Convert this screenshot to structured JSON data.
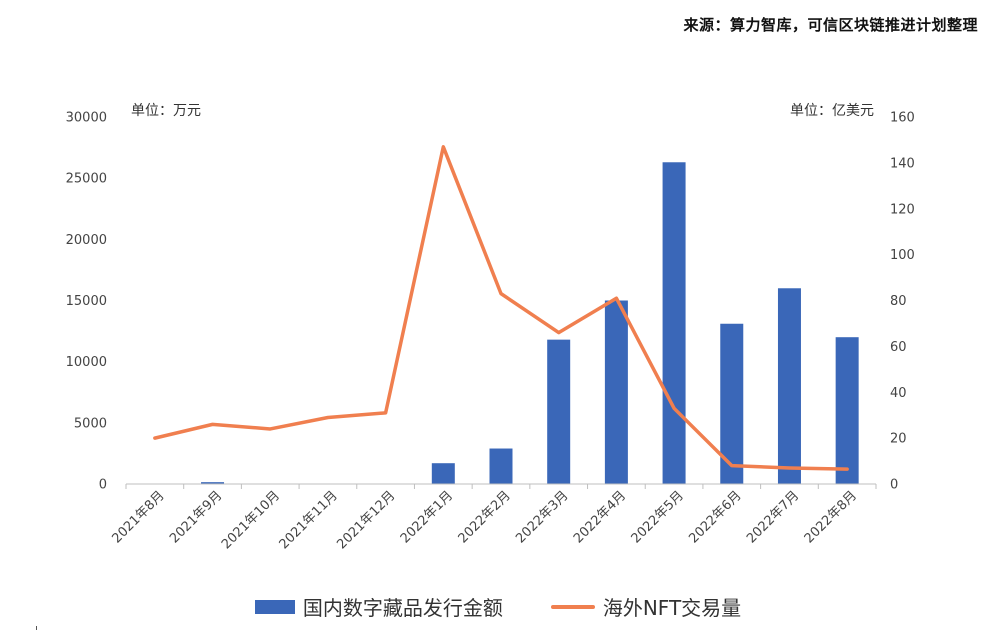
{
  "source_text": "来源：算力智库，可信区块链推进计划整理",
  "colors": {
    "bar": "#3A67B8",
    "line": "#F07F4F",
    "axis": "#BFBFBF"
  },
  "chart_data": {
    "type": "bar-line",
    "title": "",
    "categories": [
      "2021年8月",
      "2021年9月",
      "2021年10月",
      "2021年11月",
      "2021年12月",
      "2022年1月",
      "2022年2月",
      "2022年3月",
      "2022年4月",
      "2022年5月",
      "2022年6月",
      "2022年7月",
      "2022年8月"
    ],
    "left_axis": {
      "unit_label": "单位：万元",
      "ylim": [
        0,
        30000
      ],
      "ticks": [
        0,
        5000,
        10000,
        15000,
        20000,
        25000,
        30000
      ]
    },
    "right_axis": {
      "unit_label": "单位：亿美元",
      "ylim": [
        0,
        160
      ],
      "ticks": [
        0,
        20,
        40,
        60,
        80,
        100,
        120,
        140,
        160
      ]
    },
    "series": [
      {
        "name": "国内数字藏品发行金额",
        "type": "bar",
        "axis": "left",
        "values": [
          0,
          150,
          0,
          0,
          0,
          1700,
          2900,
          11800,
          15000,
          26300,
          13100,
          16000,
          12000
        ]
      },
      {
        "name": "海外NFT交易量",
        "type": "line",
        "axis": "right",
        "values": [
          20,
          26,
          24,
          29,
          31,
          147,
          83,
          66,
          81,
          33,
          8,
          7,
          6.5
        ]
      }
    ],
    "grid": false,
    "legend_position": "bottom"
  }
}
